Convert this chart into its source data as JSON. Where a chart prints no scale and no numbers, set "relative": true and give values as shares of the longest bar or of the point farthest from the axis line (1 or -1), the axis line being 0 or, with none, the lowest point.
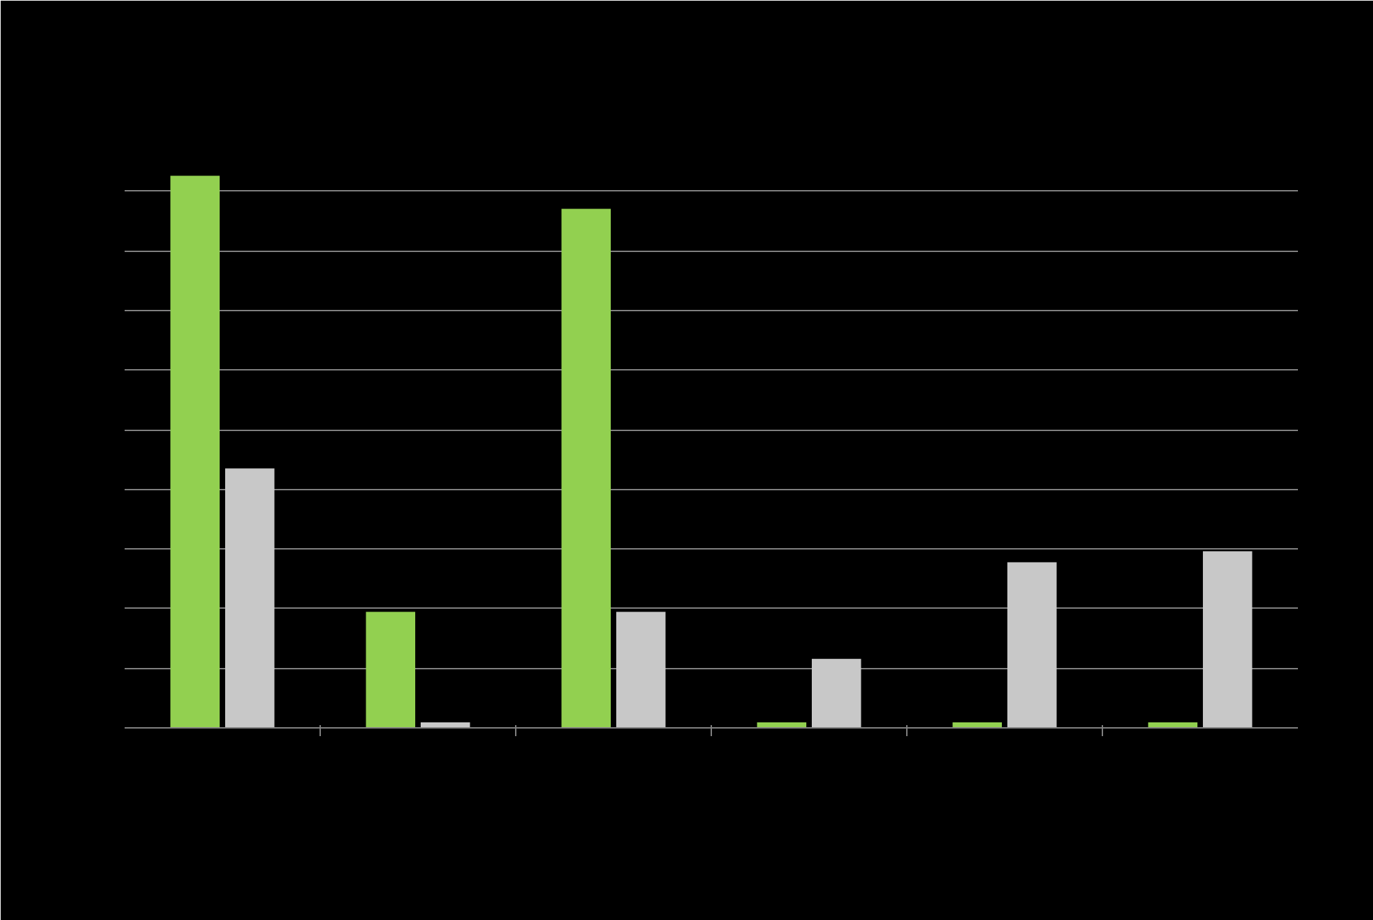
{
  "chart_data": {
    "type": "bar",
    "relative": true,
    "grid": "y",
    "categories": [
      null,
      null,
      null,
      null,
      null,
      null
    ],
    "series": [
      {
        "color": "#92d050",
        "values": [
          1,
          0.21,
          0.94,
          0.01,
          0.01,
          0.01
        ]
      },
      {
        "color": "#c8c8c8",
        "values": [
          0.47,
          0.01,
          0.21,
          0.125,
          0.3,
          0.32
        ]
      }
    ]
  }
}
